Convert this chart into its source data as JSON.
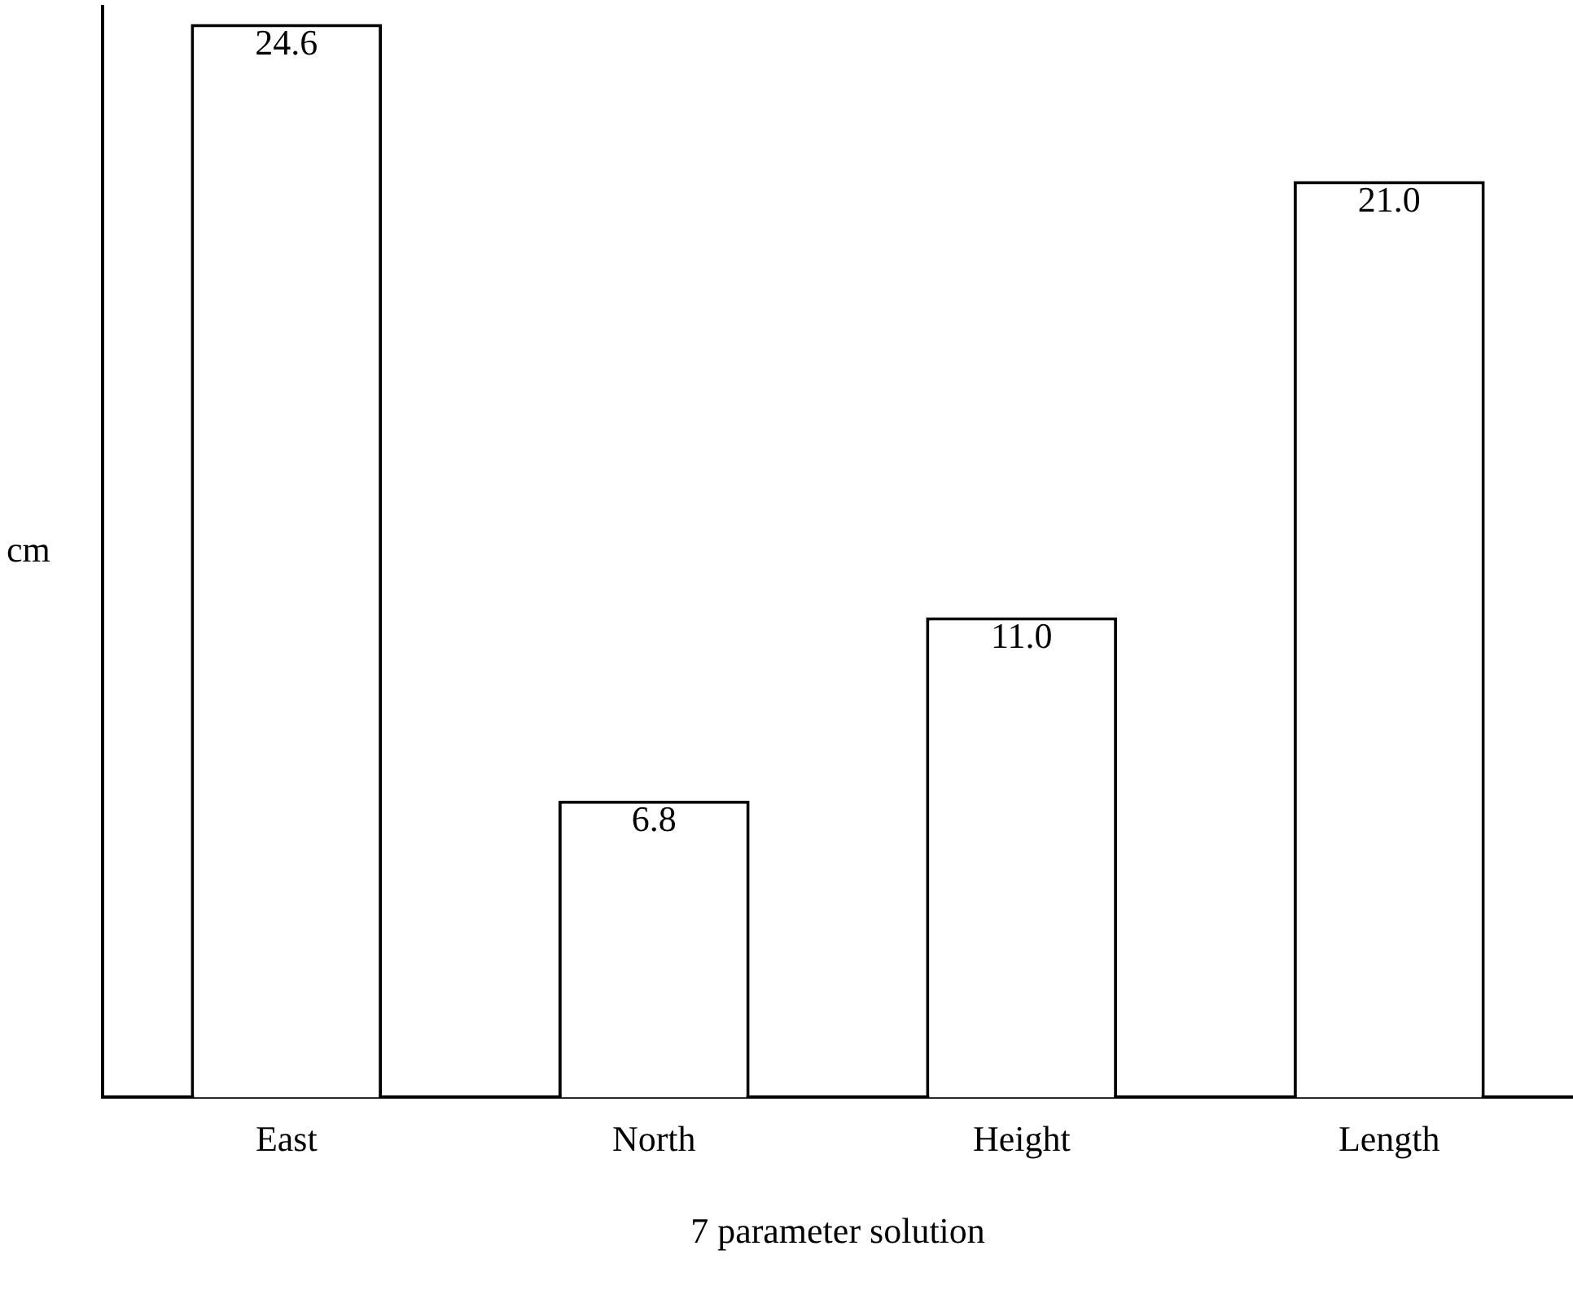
{
  "chart_data": {
    "type": "bar",
    "categories": [
      "East",
      "North",
      "Height",
      "Length"
    ],
    "values": [
      24.6,
      6.8,
      11.0,
      21.0
    ],
    "value_labels": [
      "24.6",
      "6.8",
      "11.0",
      "21.0"
    ],
    "color": "#ffffff",
    "ylabel": "cm",
    "xlabel": "7 parameter solution",
    "grid": false,
    "legend": false
  }
}
